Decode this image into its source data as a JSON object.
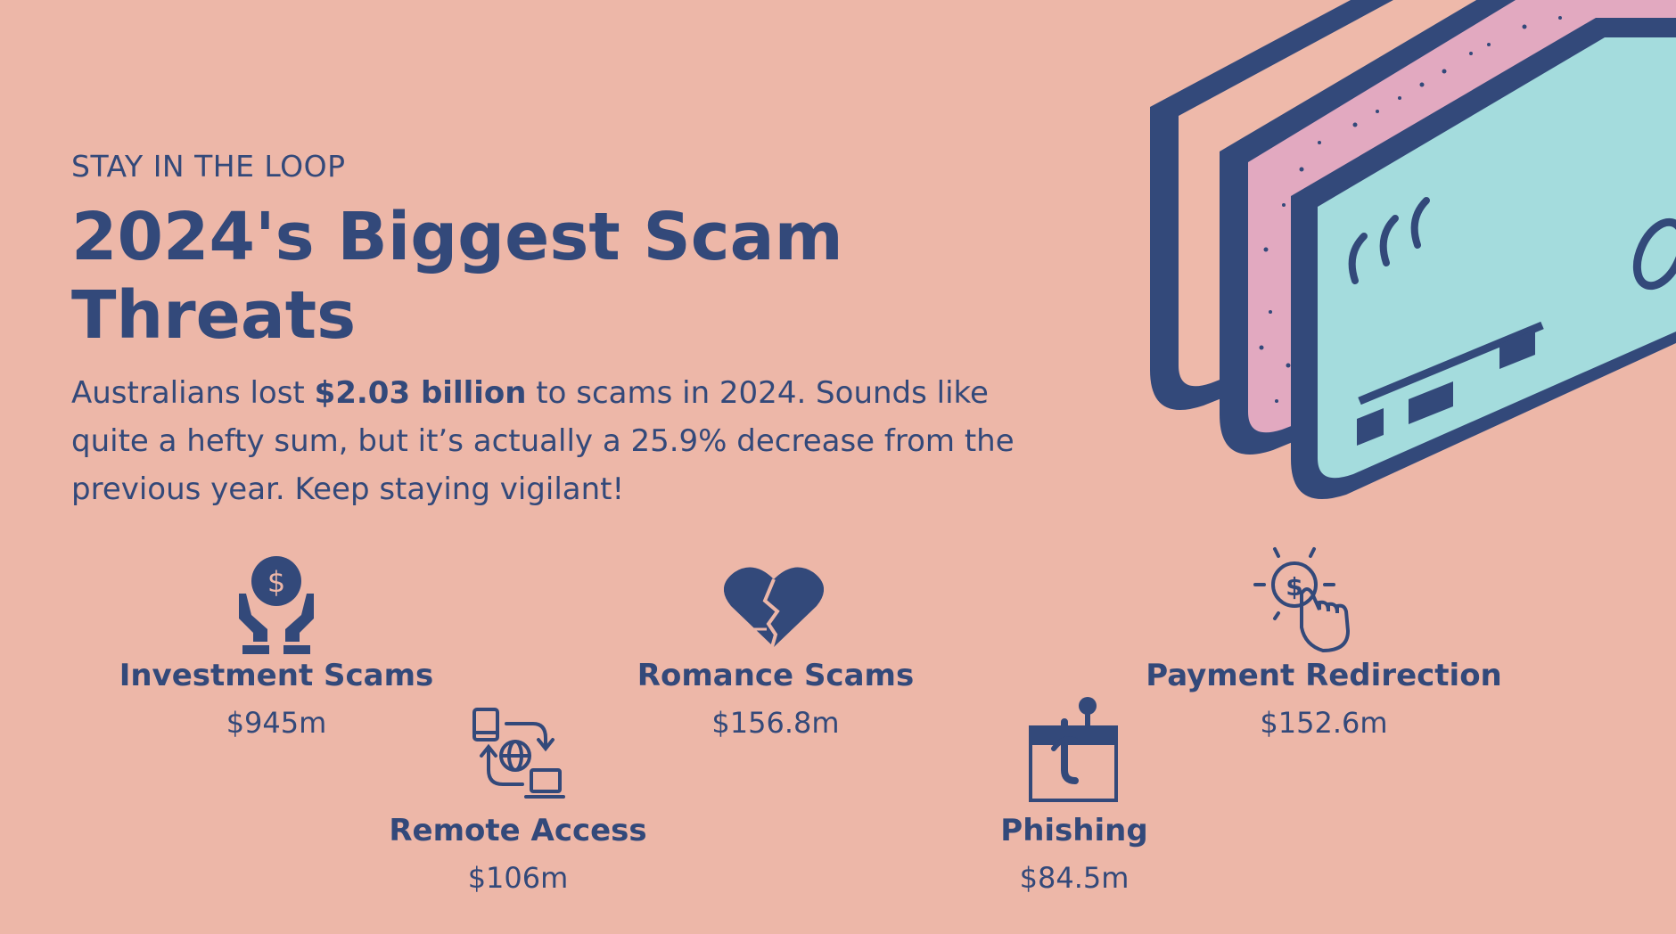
{
  "header": {
    "eyebrow": "STAY IN THE LOOP",
    "title": "2024's Biggest Scam Threats"
  },
  "intro": {
    "before": "Australians lost ",
    "amount": "$2.03 billion",
    "after": " to scams in 2024. Sounds like quite a hefty sum, but it’s actually a 25.9% decrease from the previous year. Keep staying vigilant!"
  },
  "stats": {
    "investment": {
      "label": "Investment Scams",
      "value": "$945m",
      "icon": "hands-coin-icon"
    },
    "romance": {
      "label": "Romance Scams",
      "value": "$156.8m",
      "icon": "broken-heart-icon"
    },
    "payment": {
      "label": "Payment Redirection",
      "value": "$152.6m",
      "icon": "click-coin-icon"
    },
    "remote": {
      "label": "Remote Access",
      "value": "$106m",
      "icon": "remote-access-icon"
    },
    "phishing": {
      "label": "Phishing",
      "value": "$84.5m",
      "icon": "fishing-hook-icon"
    }
  },
  "colors": {
    "background": "#EDB7A8",
    "text": "#33497A",
    "card_mint": "#A4DCDD",
    "card_pink": "#E2A9C0",
    "card_cream": "#EEB9AA"
  }
}
